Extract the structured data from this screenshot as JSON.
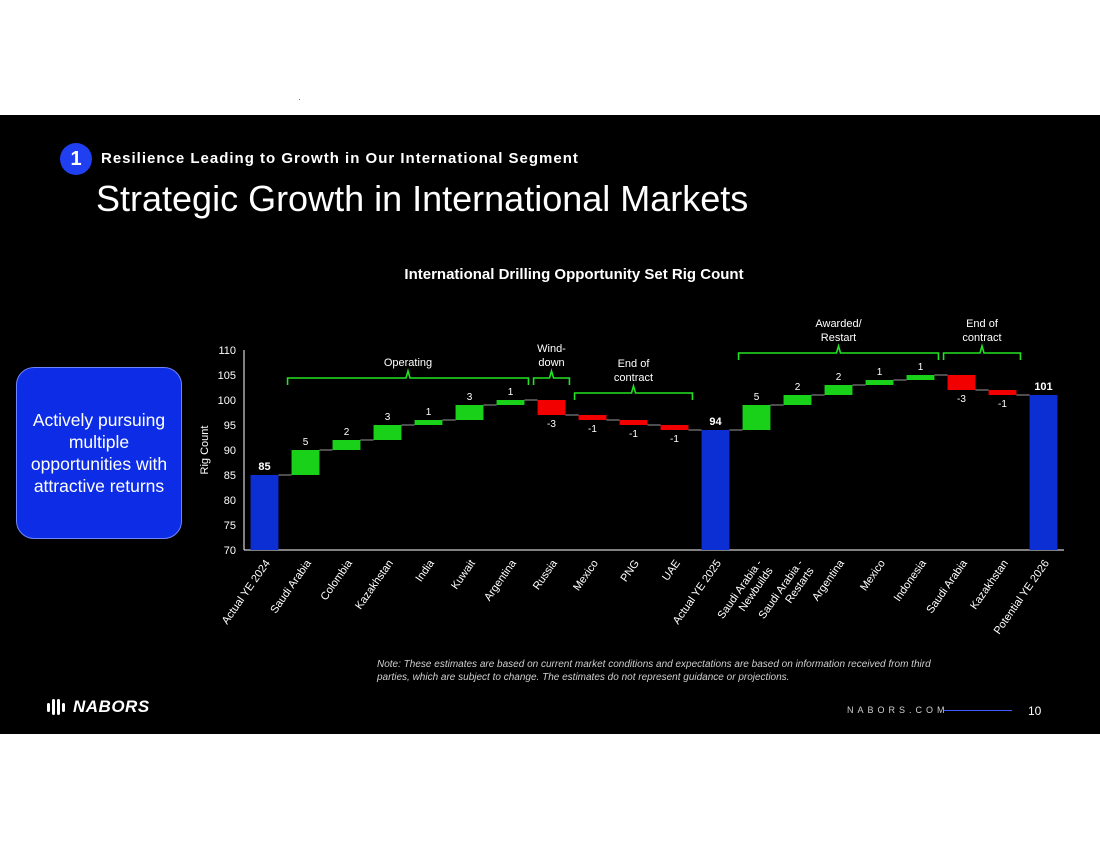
{
  "header": {
    "badge": "1",
    "subtitle": "Resilience Leading to Growth in Our International Segment",
    "title": "Strategic Growth in International Markets"
  },
  "callout": {
    "text": "Actively pursuing multiple opportunities with attractive returns"
  },
  "note": "Note: These estimates are based on current market conditions and expectations are based on information received from third parties, which are subject to change. The estimates do not represent guidance or projections.",
  "footer": {
    "logo_text": "NABORS",
    "site": "NABORS.COM",
    "page_number": "10"
  },
  "colors": {
    "total": "#0b2fd3",
    "increase": "#19d119",
    "decrease": "#f20000",
    "bracket": "#22e322",
    "accent": "#1f3ff0"
  },
  "chart_data": {
    "type": "waterfall",
    "title": "International Drilling Opportunity Set Rig Count",
    "ylabel": "Rig Count",
    "ylim": [
      70,
      110
    ],
    "yticks": [
      70,
      75,
      80,
      85,
      90,
      95,
      100,
      105,
      110
    ],
    "categories": [
      "Actual YE 2024",
      "Saudi Arabia",
      "Colombia",
      "Kazakhstan",
      "India",
      "Kuwait",
      "Argentina",
      "Russia",
      "Mexico",
      "PNG",
      "UAE",
      "Actual YE 2025",
      "Saudi Arabia - Newbuilds",
      "Saudi Arabia - Restarts",
      "Argentina",
      "Mexico",
      "Indonesia",
      "Saudi Arabia",
      "Kazakhstan",
      "Potential YE 2026"
    ],
    "tick_lines": [
      [
        "Actual YE 2024"
      ],
      [
        "Saudi Arabia"
      ],
      [
        "Colombia"
      ],
      [
        "Kazakhstan"
      ],
      [
        "India"
      ],
      [
        "Kuwait"
      ],
      [
        "Argentina"
      ],
      [
        "Russia"
      ],
      [
        "Mexico"
      ],
      [
        "PNG"
      ],
      [
        "UAE"
      ],
      [
        "Actual YE 2025"
      ],
      [
        "Saudi Arabia -",
        "Newbuilds"
      ],
      [
        "Saudi Arabia -",
        "Restarts"
      ],
      [
        "Argentina"
      ],
      [
        "Mexico"
      ],
      [
        "Indonesia"
      ],
      [
        "Saudi Arabia"
      ],
      [
        "Kazakhstan"
      ],
      [
        "Potential YE 2026"
      ]
    ],
    "values": [
      85,
      5,
      2,
      3,
      1,
      3,
      1,
      -3,
      -1,
      -1,
      -1,
      94,
      5,
      2,
      2,
      1,
      1,
      -3,
      -1,
      101
    ],
    "kinds": [
      "total",
      "inc",
      "inc",
      "inc",
      "inc",
      "inc",
      "inc",
      "dec",
      "dec",
      "dec",
      "dec",
      "total",
      "inc",
      "inc",
      "inc",
      "inc",
      "inc",
      "dec",
      "dec",
      "total"
    ],
    "data_labels": [
      "85",
      "5",
      "2",
      "3",
      "1",
      "3",
      "1",
      "-3",
      "-1",
      "-1",
      "-1",
      "94",
      "5",
      "2",
      "2",
      "1",
      "1",
      "-3",
      "-1",
      "101"
    ],
    "groups": [
      {
        "label_lines": [
          "Operating"
        ],
        "from": 1,
        "to": 6
      },
      {
        "label_lines": [
          "Wind-",
          "down"
        ],
        "from": 7,
        "to": 7
      },
      {
        "label_lines": [
          "End of",
          "contract"
        ],
        "from": 8,
        "to": 10
      },
      {
        "label_lines": [
          "Awarded/",
          "Restart"
        ],
        "from": 12,
        "to": 16
      },
      {
        "label_lines": [
          "End of",
          "contract"
        ],
        "from": 17,
        "to": 18
      }
    ]
  }
}
